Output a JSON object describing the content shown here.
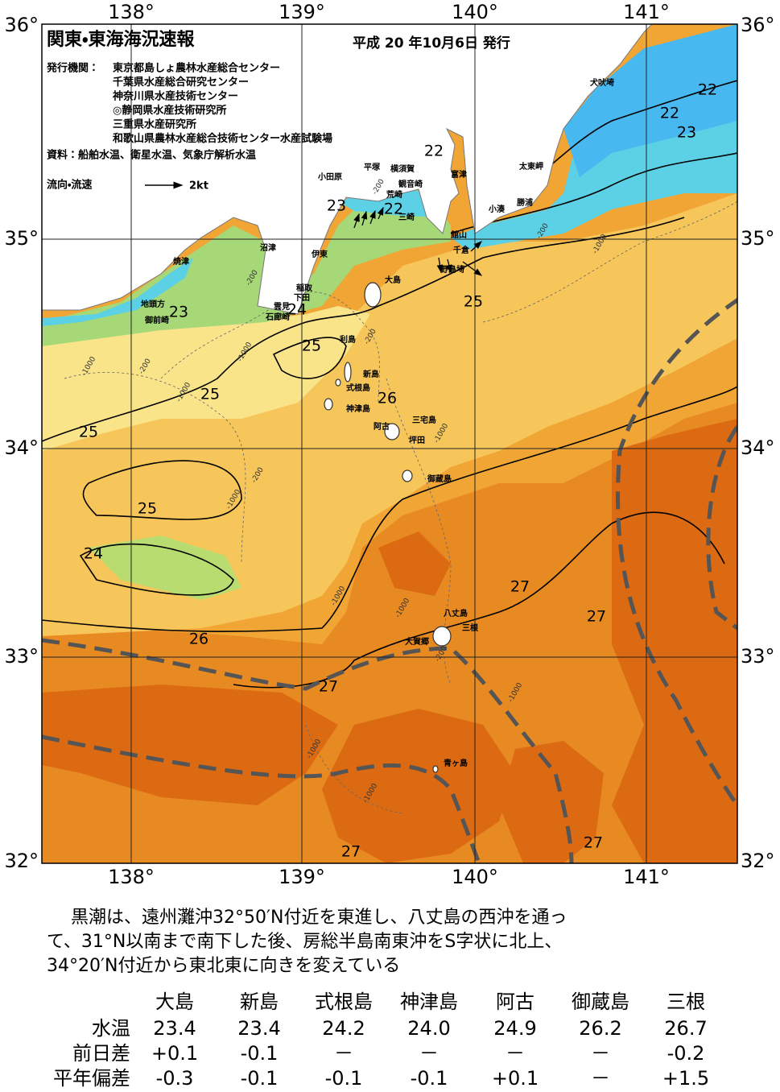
{
  "header": {
    "title": "関東・東海海況速報",
    "issue_date": "平成 20 年10月6日 発行",
    "issuer_label": "発行機関：",
    "issuers": [
      "東京都島しょ農林水産総合センター",
      "千葉県水産総合研究センター",
      "神奈川県水産技術センター",
      "◎静岡県水産技術研究所",
      "三重県水産研究所",
      "和歌山県農林水産総合技術センター水産試験場"
    ],
    "source": "資料：船舶水温、衛星水温、気象庁解析水温"
  },
  "legend": {
    "label": "流向・流速",
    "scale": "2kt"
  },
  "axes": {
    "top_lon": [
      "138°",
      "139°",
      "140°",
      "141°"
    ],
    "bottom_lon": [
      "138°",
      "139°",
      "140°",
      "141°"
    ],
    "left_lat": [
      "36°",
      "35°",
      "34°",
      "33°",
      "32°"
    ],
    "right_lat": [
      "36°",
      "35°",
      "34°",
      "33°",
      "32°"
    ]
  },
  "map": {
    "place_names": [
      "犬吠埼",
      "太東岬",
      "勝浦",
      "富津",
      "小湊",
      "館山",
      "千倉",
      "野島埼",
      "平塚",
      "横須賀",
      "観音崎",
      "荒崎",
      "三崎",
      "小田原",
      "沼津",
      "伊東",
      "焼津",
      "稲取",
      "下田",
      "雲見",
      "石廊崎",
      "地頭方",
      "御前崎",
      "大島",
      "利島",
      "新島",
      "式根島",
      "神津島",
      "三宅島",
      "阿古",
      "坪田",
      "御蔵島",
      "八丈島",
      "三根",
      "大賀郷",
      "青ヶ島"
    ],
    "contour_labels": [
      22,
      22,
      23,
      22,
      23,
      22,
      25,
      24,
      23,
      25,
      25,
      26,
      25,
      25,
      24,
      27,
      27,
      26,
      27,
      27,
      27
    ],
    "depth_labels": [
      "-200",
      "-200",
      "-200",
      "-200",
      "-200",
      "-200",
      "-200",
      "-1000",
      "-1000",
      "-1000",
      "-1000",
      "-1000",
      "-1000",
      "-1000",
      "-1000",
      "-1000",
      "-1000",
      "-1000"
    ]
  },
  "summary": {
    "lines": [
      "黒潮は、遠州灘沖32°50′N付近を東進し、八丈島の西沖を通っ",
      "て、31°N以南まで南下した後、房総半島南東沖をS字状に北上、",
      "34°20′N付近から東北東に向きを変えている"
    ]
  },
  "table": {
    "columns": [
      "大島",
      "新島",
      "式根島",
      "神津島",
      "阿古",
      "御蔵島",
      "三根"
    ],
    "rows": [
      {
        "label": "水温",
        "values": [
          "23.4",
          "23.4",
          "24.2",
          "24.0",
          "24.9",
          "26.2",
          "26.7"
        ]
      },
      {
        "label": "前日差",
        "values": [
          "+0.1",
          "-0.1",
          "－",
          "－",
          "－",
          "－",
          "-0.2"
        ]
      },
      {
        "label": "平年偏差",
        "values": [
          "-0.3",
          "-0.1",
          "-0.1",
          "-0.1",
          "+0.1",
          "－",
          "+1.5"
        ]
      }
    ]
  }
}
